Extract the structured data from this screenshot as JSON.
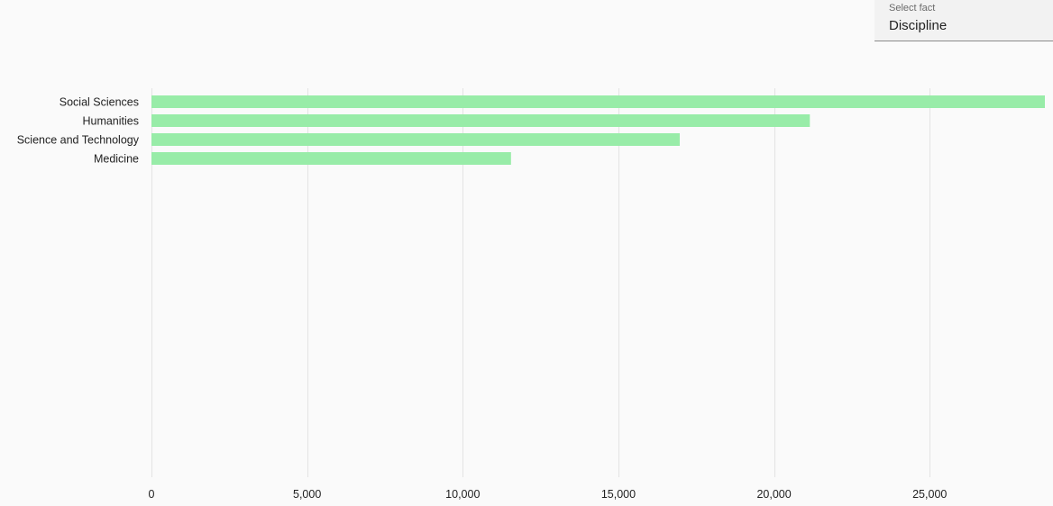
{
  "selector": {
    "label": "Select fact",
    "value": "Discipline"
  },
  "chart_data": {
    "type": "bar",
    "orientation": "horizontal",
    "categories": [
      "Social Sciences",
      "Humanities",
      "Science and Technology",
      "Medicine"
    ],
    "values": [
      28700,
      21150,
      16970,
      11550
    ],
    "xlim": [
      0,
      28700
    ],
    "xticks": [
      0,
      5000,
      10000,
      15000,
      20000,
      25000
    ],
    "xtick_labels": [
      "0",
      "5,000",
      "10,000",
      "15,000",
      "20,000",
      "25,000"
    ],
    "grid": true,
    "bar_color": "#98eca8",
    "title": "",
    "xlabel": "",
    "ylabel": ""
  }
}
